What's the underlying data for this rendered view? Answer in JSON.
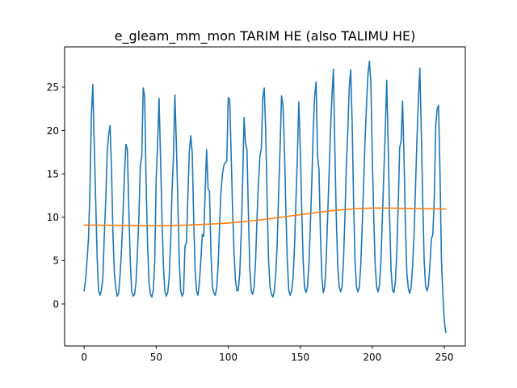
{
  "chart_data": {
    "type": "line",
    "title": "e_gleam_mm_mon TARIM HE (also TALIMU HE)",
    "xlabel": "",
    "ylabel": "",
    "xlim": [
      -13.55,
      264.55
    ],
    "ylim": [
      -4.85,
      29.65
    ],
    "grid": false,
    "legend": "none",
    "x_ticks": [
      0,
      50,
      100,
      150,
      200,
      250
    ],
    "y_ticks": [
      0,
      5,
      10,
      15,
      20,
      25
    ],
    "series": [
      {
        "color": "#1f77b4",
        "points": [
          [
            0,
            1.5
          ],
          [
            1,
            2.8
          ],
          [
            2,
            5.0
          ],
          [
            3,
            7.5
          ],
          [
            4,
            13.0
          ],
          [
            5,
            21.5
          ],
          [
            6,
            25.3
          ],
          [
            7,
            18.5
          ],
          [
            8,
            12.0
          ],
          [
            9,
            5.5
          ],
          [
            10,
            1.5
          ],
          [
            11,
            1.0
          ],
          [
            12,
            1.6
          ],
          [
            13,
            3.0
          ],
          [
            14,
            8.0
          ],
          [
            15,
            12.0
          ],
          [
            16,
            17.5
          ],
          [
            17,
            19.5
          ],
          [
            18,
            20.6
          ],
          [
            19,
            15.5
          ],
          [
            20,
            8.0
          ],
          [
            21,
            3.5
          ],
          [
            22,
            1.8
          ],
          [
            23,
            0.9
          ],
          [
            24,
            1.3
          ],
          [
            25,
            3.5
          ],
          [
            26,
            6.5
          ],
          [
            27,
            10.5
          ],
          [
            28,
            15.0
          ],
          [
            29,
            18.4
          ],
          [
            30,
            17.8
          ],
          [
            31,
            11.0
          ],
          [
            32,
            5.0
          ],
          [
            33,
            1.5
          ],
          [
            34,
            0.9
          ],
          [
            35,
            1.1
          ],
          [
            36,
            2.5
          ],
          [
            37,
            6.0
          ],
          [
            38,
            10.0
          ],
          [
            39,
            16.0
          ],
          [
            40,
            17.0
          ],
          [
            41,
            24.9
          ],
          [
            42,
            24.0
          ],
          [
            43,
            14.0
          ],
          [
            44,
            7.0
          ],
          [
            45,
            2.5
          ],
          [
            46,
            1.1
          ],
          [
            47,
            0.8
          ],
          [
            48,
            1.6
          ],
          [
            49,
            5.0
          ],
          [
            50,
            14.5
          ],
          [
            51,
            18.5
          ],
          [
            52,
            23.7
          ],
          [
            53,
            17.0
          ],
          [
            54,
            10.0
          ],
          [
            55,
            4.5
          ],
          [
            56,
            1.5
          ],
          [
            57,
            0.9
          ],
          [
            58,
            1.3
          ],
          [
            59,
            3.0
          ],
          [
            60,
            7.0
          ],
          [
            61,
            13.0
          ],
          [
            62,
            17.0
          ],
          [
            63,
            24.1
          ],
          [
            64,
            18.5
          ],
          [
            65,
            12.0
          ],
          [
            66,
            5.0
          ],
          [
            67,
            1.5
          ],
          [
            68,
            0.9
          ],
          [
            69,
            1.3
          ],
          [
            70,
            6.7
          ],
          [
            71,
            7.0
          ],
          [
            72,
            12.5
          ],
          [
            73,
            17.5
          ],
          [
            74,
            19.4
          ],
          [
            75,
            17.5
          ],
          [
            76,
            10.0
          ],
          [
            77,
            4.0
          ],
          [
            78,
            1.5
          ],
          [
            79,
            1.0
          ],
          [
            80,
            2.5
          ],
          [
            81,
            5.0
          ],
          [
            82,
            8.0
          ],
          [
            83,
            7.8
          ],
          [
            84,
            13.0
          ],
          [
            85,
            17.8
          ],
          [
            86,
            13.3
          ],
          [
            87,
            13.0
          ],
          [
            88,
            6.0
          ],
          [
            89,
            2.0
          ],
          [
            90,
            1.3
          ],
          [
            91,
            1.0
          ],
          [
            92,
            1.8
          ],
          [
            93,
            4.5
          ],
          [
            94,
            9.0
          ],
          [
            95,
            13.0
          ],
          [
            96,
            15.0
          ],
          [
            97,
            16.0
          ],
          [
            98,
            16.3
          ],
          [
            99,
            16.5
          ],
          [
            100,
            23.8
          ],
          [
            101,
            23.6
          ],
          [
            102,
            17.5
          ],
          [
            103,
            11.0
          ],
          [
            104,
            6.0
          ],
          [
            105,
            2.8
          ],
          [
            106,
            1.5
          ],
          [
            107,
            1.6
          ],
          [
            108,
            3.5
          ],
          [
            109,
            8.0
          ],
          [
            110,
            14.0
          ],
          [
            111,
            21.5
          ],
          [
            112,
            18.5
          ],
          [
            113,
            17.8
          ],
          [
            114,
            10.5
          ],
          [
            115,
            4.0
          ],
          [
            116,
            1.5
          ],
          [
            117,
            1.1
          ],
          [
            118,
            2.0
          ],
          [
            119,
            5.0
          ],
          [
            120,
            10.0
          ],
          [
            121,
            14.0
          ],
          [
            122,
            17.0
          ],
          [
            123,
            18.0
          ],
          [
            124,
            23.8
          ],
          [
            125,
            24.9
          ],
          [
            126,
            20.0
          ],
          [
            127,
            12.0
          ],
          [
            128,
            5.0
          ],
          [
            129,
            2.0
          ],
          [
            130,
            1.1
          ],
          [
            131,
            0.8
          ],
          [
            132,
            1.5
          ],
          [
            133,
            3.5
          ],
          [
            134,
            7.0
          ],
          [
            135,
            13.0
          ],
          [
            136,
            18.0
          ],
          [
            137,
            24.0
          ],
          [
            138,
            23.0
          ],
          [
            139,
            18.0
          ],
          [
            140,
            11.0
          ],
          [
            141,
            5.0
          ],
          [
            142,
            1.6
          ],
          [
            143,
            1.0
          ],
          [
            144,
            1.5
          ],
          [
            145,
            3.0
          ],
          [
            146,
            6.5
          ],
          [
            147,
            12.0
          ],
          [
            148,
            17.0
          ],
          [
            149,
            23.3
          ],
          [
            150,
            18.0
          ],
          [
            151,
            11.0
          ],
          [
            152,
            5.0
          ],
          [
            153,
            1.8
          ],
          [
            154,
            1.3
          ],
          [
            155,
            2.0
          ],
          [
            156,
            4.5
          ],
          [
            157,
            9.0
          ],
          [
            158,
            14.0
          ],
          [
            159,
            20.0
          ],
          [
            160,
            24.0
          ],
          [
            161,
            25.6
          ],
          [
            162,
            17.0
          ],
          [
            163,
            15.5
          ],
          [
            164,
            8.0
          ],
          [
            165,
            3.0
          ],
          [
            166,
            1.3
          ],
          [
            167,
            2.0
          ],
          [
            168,
            5.0
          ],
          [
            169,
            10.0
          ],
          [
            170,
            15.0
          ],
          [
            171,
            20.0
          ],
          [
            172,
            24.0
          ],
          [
            173,
            27.1
          ],
          [
            174,
            18.0
          ],
          [
            175,
            10.0
          ],
          [
            176,
            4.5
          ],
          [
            177,
            2.0
          ],
          [
            178,
            1.4
          ],
          [
            179,
            2.0
          ],
          [
            180,
            5.0
          ],
          [
            181,
            10.0
          ],
          [
            182,
            16.0
          ],
          [
            183,
            20.0
          ],
          [
            184,
            25.0
          ],
          [
            185,
            27.0
          ],
          [
            186,
            21.0
          ],
          [
            187,
            12.0
          ],
          [
            188,
            5.0
          ],
          [
            189,
            2.0
          ],
          [
            190,
            1.4
          ],
          [
            191,
            1.9
          ],
          [
            192,
            4.5
          ],
          [
            193,
            9.0
          ],
          [
            194,
            14.0
          ],
          [
            195,
            19.0
          ],
          [
            196,
            23.0
          ],
          [
            197,
            26.5
          ],
          [
            198,
            28.0
          ],
          [
            199,
            25.5
          ],
          [
            200,
            17.0
          ],
          [
            201,
            10.0
          ],
          [
            202,
            4.5
          ],
          [
            203,
            2.0
          ],
          [
            204,
            1.4
          ],
          [
            205,
            2.2
          ],
          [
            206,
            5.0
          ],
          [
            207,
            10.0
          ],
          [
            208,
            15.0
          ],
          [
            209,
            20.0
          ],
          [
            210,
            25.8
          ],
          [
            211,
            18.5
          ],
          [
            212,
            10.0
          ],
          [
            213,
            4.0
          ],
          [
            214,
            1.6
          ],
          [
            215,
            1.3
          ],
          [
            216,
            2.5
          ],
          [
            217,
            6.0
          ],
          [
            218,
            11.5
          ],
          [
            219,
            18.0
          ],
          [
            220,
            18.8
          ],
          [
            221,
            23.4
          ],
          [
            222,
            17.0
          ],
          [
            223,
            9.0
          ],
          [
            224,
            3.5
          ],
          [
            225,
            1.8
          ],
          [
            226,
            1.2
          ],
          [
            227,
            2.0
          ],
          [
            228,
            4.5
          ],
          [
            229,
            8.0
          ],
          [
            230,
            13.5
          ],
          [
            231,
            19.0
          ],
          [
            232,
            23.5
          ],
          [
            233,
            27.2
          ],
          [
            234,
            20.0
          ],
          [
            235,
            12.0
          ],
          [
            236,
            5.0
          ],
          [
            237,
            2.0
          ],
          [
            238,
            1.5
          ],
          [
            239,
            2.2
          ],
          [
            240,
            4.5
          ],
          [
            241,
            7.5
          ],
          [
            242,
            8.0
          ],
          [
            243,
            12.0
          ],
          [
            244,
            20.5
          ],
          [
            245,
            22.5
          ],
          [
            246,
            22.9
          ],
          [
            247,
            15.0
          ],
          [
            248,
            5.0
          ],
          [
            249,
            1.0
          ],
          [
            250,
            -2.0
          ],
          [
            251,
            -3.3
          ]
        ]
      },
      {
        "color": "#ff7f0e",
        "points": [
          [
            0,
            9.1
          ],
          [
            10,
            9.08
          ],
          [
            20,
            9.07
          ],
          [
            30,
            9.05
          ],
          [
            40,
            9.03
          ],
          [
            50,
            9.02
          ],
          [
            60,
            9.04
          ],
          [
            70,
            9.08
          ],
          [
            80,
            9.15
          ],
          [
            90,
            9.23
          ],
          [
            100,
            9.33
          ],
          [
            110,
            9.48
          ],
          [
            120,
            9.65
          ],
          [
            130,
            9.85
          ],
          [
            140,
            10.08
          ],
          [
            150,
            10.3
          ],
          [
            160,
            10.5
          ],
          [
            170,
            10.72
          ],
          [
            180,
            10.88
          ],
          [
            190,
            11.0
          ],
          [
            200,
            11.05
          ],
          [
            210,
            11.06
          ],
          [
            220,
            11.03
          ],
          [
            230,
            11.0
          ],
          [
            240,
            10.97
          ],
          [
            251,
            10.95
          ]
        ]
      }
    ]
  }
}
